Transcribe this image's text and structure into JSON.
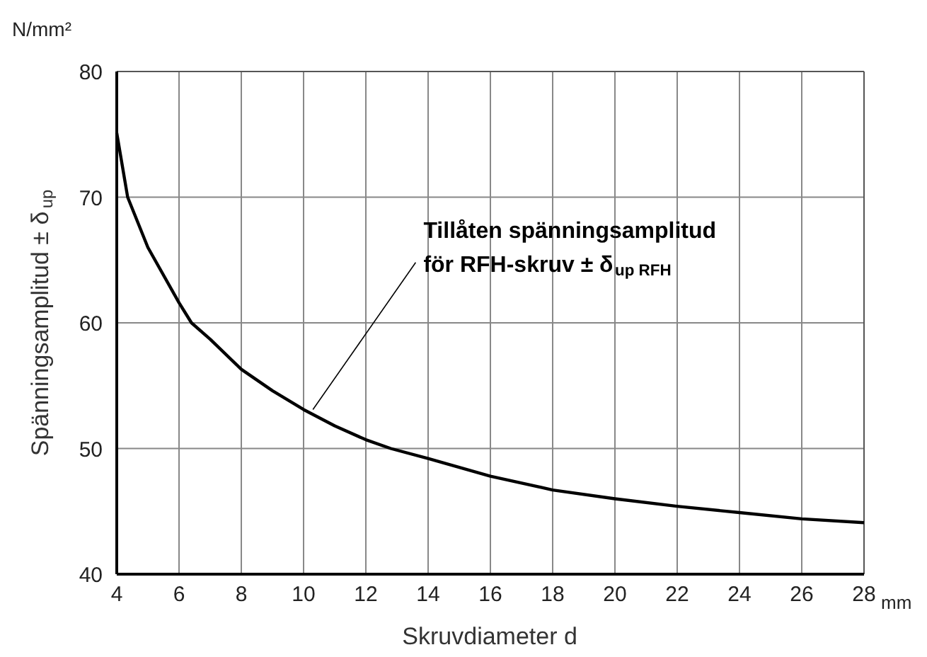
{
  "chart_data": {
    "type": "line",
    "xlabel": "Skruvdiameter d",
    "ylabel": "Spänningsamplitud ± δ$_{up}$",
    "x": [
      4,
      4.35,
      5,
      6,
      6.4,
      7,
      8,
      9,
      10,
      11,
      12,
      12.8,
      14,
      16,
      18,
      20,
      22,
      24,
      26,
      28
    ],
    "series": [
      {
        "color": "#000000",
        "values": [
          75.1,
          70,
          66,
          61.6,
          60,
          58.7,
          56.3,
          54.6,
          53.1,
          51.8,
          50.7,
          50,
          49.2,
          47.8,
          46.7,
          46.0,
          45.4,
          44.9,
          44.4,
          44.1
        ]
      }
    ],
    "xlim": [
      4,
      28
    ],
    "xticks": [
      4,
      6,
      8,
      10,
      12,
      14,
      16,
      18,
      20,
      22,
      24,
      26,
      28
    ],
    "ylim": [
      40,
      80
    ],
    "yticks": [
      40,
      50,
      60,
      70,
      80
    ],
    "grid": true,
    "marker": "none",
    "line_style": "solid",
    "annotations": [
      {
        "text": "Tillåten spänningsamplitud\nför RFH-skruv ± δ$_{up RFH}$",
        "x": 10.3,
        "y": 53.1
      },
      "N/mm²",
      "mm"
    ]
  }
}
